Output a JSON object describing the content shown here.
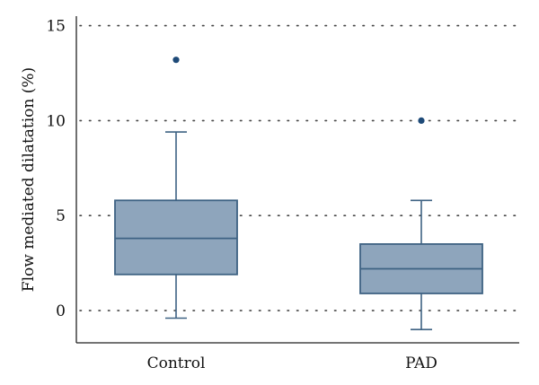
{
  "chart_data": {
    "type": "box",
    "title": "",
    "xlabel": "",
    "ylabel": "Flow mediated dilatation (%)",
    "ylim": [
      -1.7,
      15.5
    ],
    "yticks": [
      0,
      5,
      10,
      15
    ],
    "ytick_labels": [
      "0",
      "5",
      "10",
      "15"
    ],
    "grid": "horizontal-dotted",
    "categories": [
      "Control",
      "PAD"
    ],
    "series": [
      {
        "whisker_low": -0.4,
        "q1": 1.9,
        "median": 3.8,
        "q3": 5.8,
        "whisker_high": 9.4,
        "outliers": [
          13.2
        ]
      },
      {
        "whisker_low": -1.0,
        "q1": 0.9,
        "median": 2.2,
        "q3": 3.5,
        "whisker_high": 5.8,
        "outliers": [
          10.0
        ]
      }
    ],
    "colors": {
      "box_fill": "#8ea5bc",
      "box_stroke": "#3e6283",
      "outlier": "#1e4a78",
      "axis": "#222222",
      "grid": "#444444"
    }
  }
}
